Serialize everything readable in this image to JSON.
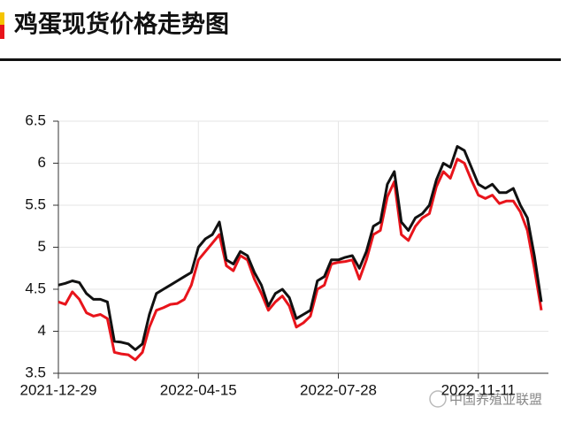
{
  "chart_data": {
    "type": "line",
    "title": "鸡蛋现货价格走势图",
    "annotation": "中国养殖业联盟",
    "categories": [
      "2021-12-29",
      null,
      null,
      null,
      null,
      null,
      null,
      null,
      null,
      null,
      null,
      null,
      null,
      null,
      null,
      null,
      null,
      null,
      null,
      null,
      "2022-04-15",
      null,
      null,
      null,
      null,
      null,
      null,
      null,
      null,
      null,
      null,
      null,
      null,
      null,
      null,
      null,
      null,
      null,
      null,
      null,
      "2022-07-28",
      null,
      null,
      null,
      null,
      null,
      null,
      null,
      null,
      null,
      null,
      null,
      null,
      null,
      null,
      null,
      null,
      null,
      null,
      null,
      "2022-11-11",
      null,
      null,
      null,
      null,
      null,
      null,
      null,
      null,
      null
    ],
    "series": [
      {
        "color": "#e8141b",
        "values": [
          4.35,
          4.32,
          4.47,
          4.38,
          4.22,
          4.18,
          4.2,
          4.15,
          3.75,
          3.73,
          3.72,
          3.66,
          3.75,
          4.05,
          4.25,
          4.28,
          4.32,
          4.33,
          4.38,
          4.55,
          4.85,
          4.95,
          5.05,
          5.15,
          4.78,
          4.72,
          4.9,
          4.85,
          4.62,
          4.45,
          4.25,
          4.35,
          4.42,
          4.3,
          4.05,
          4.1,
          4.18,
          4.5,
          4.55,
          4.8,
          4.82,
          4.83,
          4.85,
          4.62,
          4.85,
          5.15,
          5.2,
          5.6,
          5.78,
          5.15,
          5.08,
          5.25,
          5.35,
          5.4,
          5.72,
          5.9,
          5.82,
          6.05,
          6.0,
          5.8,
          5.62,
          5.58,
          5.62,
          5.52,
          5.55,
          5.55,
          5.42,
          5.2,
          4.75,
          4.25
        ]
      },
      {
        "color": "#111111",
        "values": [
          4.55,
          4.57,
          4.6,
          4.58,
          4.45,
          4.38,
          4.38,
          4.35,
          3.88,
          3.87,
          3.85,
          3.78,
          3.85,
          4.2,
          4.45,
          4.5,
          4.55,
          4.6,
          4.65,
          4.7,
          5.0,
          5.1,
          5.15,
          5.3,
          4.85,
          4.8,
          4.95,
          4.9,
          4.7,
          4.55,
          4.3,
          4.45,
          4.5,
          4.4,
          4.15,
          4.2,
          4.25,
          4.6,
          4.65,
          4.85,
          4.85,
          4.88,
          4.9,
          4.75,
          4.95,
          5.25,
          5.3,
          5.75,
          5.9,
          5.3,
          5.2,
          5.35,
          5.4,
          5.5,
          5.8,
          6.0,
          5.95,
          6.2,
          6.15,
          5.95,
          5.75,
          5.7,
          5.75,
          5.65,
          5.65,
          5.7,
          5.5,
          5.35,
          4.9,
          4.35
        ]
      }
    ],
    "ylim": [
      3.5,
      6.5
    ],
    "yticks": [
      3.5,
      4,
      4.5,
      5,
      5.5,
      6,
      6.5
    ],
    "grid": true
  }
}
